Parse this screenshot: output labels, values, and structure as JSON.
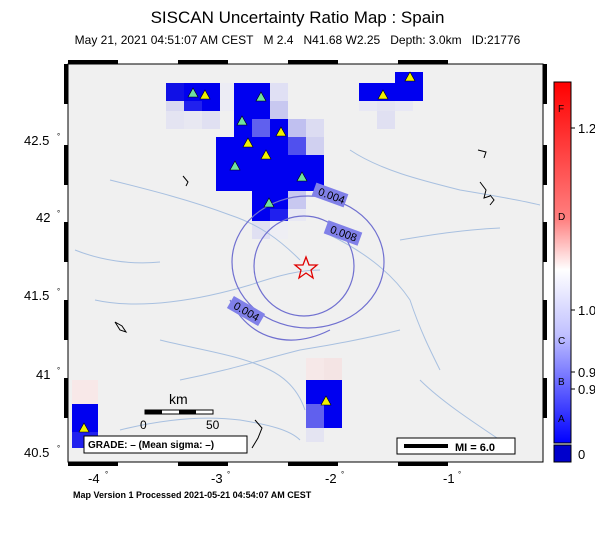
{
  "header": {
    "title": "SISCAN Uncertainty Ratio Map : Spain",
    "subtitle_parts": [
      "May 21, 2021 04:51:07 AM CEST",
      "M 2.4",
      "N41.68 W2.25",
      "Depth: 3.0km",
      "ID:21776"
    ]
  },
  "footer": {
    "text": "Map Version 1 Processed 2021-05-21 04:54:07 AM CEST"
  },
  "axes": {
    "lon_ticks": [
      "-4",
      "-3",
      "-2",
      "-1"
    ],
    "lat_ticks": [
      "42.5",
      "42",
      "41.5",
      "41",
      "40.5"
    ]
  },
  "contours": [
    "0.004",
    "0.008",
    "0.004"
  ],
  "scale_bar": {
    "unit": "km",
    "labels": [
      "0",
      "50"
    ]
  },
  "grade_box": {
    "text": "GRADE: – (Mean sigma: –)"
  },
  "mi_legend": {
    "text": "MI = 6.0"
  },
  "colorbar": {
    "grades": [
      "F",
      "D",
      "C",
      "B",
      "A"
    ],
    "values": [
      "1.2",
      "1.0",
      "0.9",
      "0.9",
      "0"
    ],
    "colors": {
      "high": "#ff0000",
      "mid": "#ffffff",
      "low": "#0000ff",
      "zero": "#0000cc"
    }
  },
  "epicenter": {
    "lat": 41.68,
    "lon": -2.25
  },
  "symbols": {
    "epicenter": "star-icon",
    "station": "triangle-icon"
  }
}
